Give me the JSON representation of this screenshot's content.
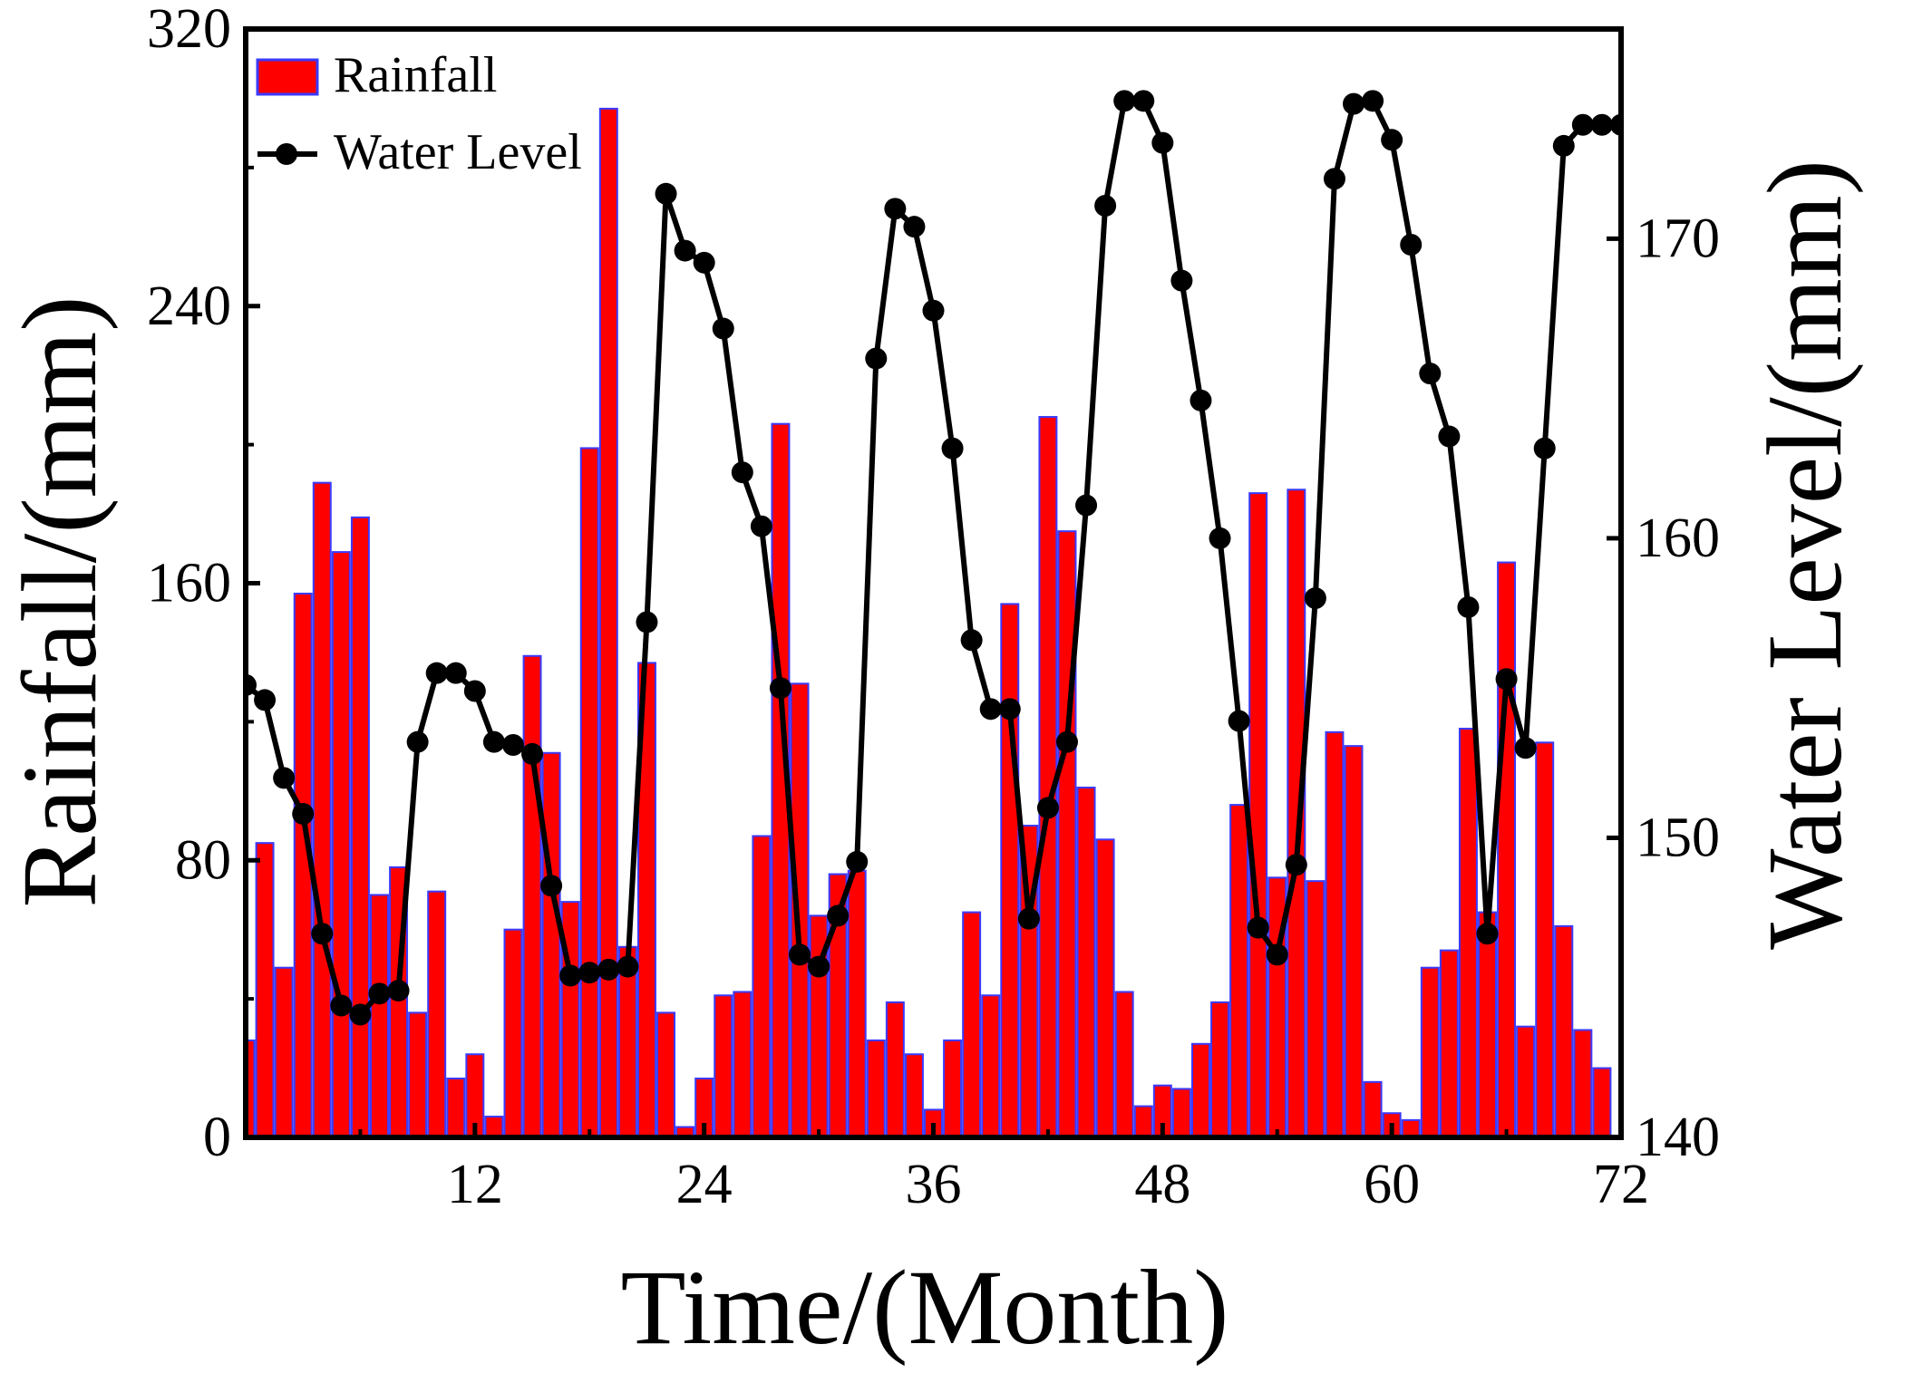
{
  "chart_data": {
    "type": "bar+line",
    "title": "",
    "xlabel": "Time/(Month)",
    "ylabel_left": "Rainfall/(mm)",
    "ylabel_right": "Water Level/(mm)",
    "xlim": [
      0,
      72
    ],
    "ylim_left": [
      0,
      320
    ],
    "ylim_right": [
      140,
      177
    ],
    "x_ticks": [
      "12",
      "24",
      "36",
      "48",
      "60",
      "72"
    ],
    "x_tick_values": [
      12,
      24,
      36,
      48,
      60,
      72
    ],
    "y_left_ticks": [
      "0",
      "80",
      "160",
      "240",
      "320"
    ],
    "y_left_tick_values": [
      0,
      80,
      160,
      240,
      320
    ],
    "y_right_ticks": [
      "140",
      "150",
      "160",
      "170"
    ],
    "y_right_tick_values": [
      140,
      150,
      160,
      170
    ],
    "legend": {
      "position": "top-left",
      "entries": [
        "Rainfall",
        "Water Level"
      ]
    },
    "colors": {
      "bar_fill": "#ff0000",
      "bar_edge": "#3a3aff",
      "line": "#000000"
    },
    "series": [
      {
        "name": "Rainfall",
        "kind": "bar",
        "axis": "left",
        "x": [
          0,
          1,
          2,
          3,
          4,
          5,
          6,
          7,
          8,
          9,
          10,
          11,
          12,
          13,
          14,
          15,
          16,
          17,
          18,
          19,
          20,
          21,
          22,
          23,
          24,
          25,
          26,
          27,
          28,
          29,
          30,
          31,
          32,
          33,
          34,
          35,
          36,
          37,
          38,
          39,
          40,
          41,
          42,
          43,
          44,
          45,
          46,
          47,
          48,
          49,
          50,
          51,
          52,
          53,
          54,
          55,
          56,
          57,
          58,
          59,
          60,
          61,
          62,
          63,
          64,
          65,
          66,
          67,
          68,
          69,
          70,
          71,
          72
        ],
        "values": [
          28,
          85,
          49,
          157,
          189,
          169,
          179,
          70,
          78,
          36,
          71,
          17,
          24,
          6,
          60,
          139,
          111,
          68,
          199,
          297,
          55,
          137,
          36,
          3,
          17,
          41,
          42,
          87,
          206,
          131,
          64,
          76,
          77,
          28,
          39,
          24,
          8,
          28,
          65,
          41,
          154,
          90,
          208,
          175,
          101,
          86,
          42,
          9,
          15,
          14,
          27,
          39,
          96,
          186,
          75,
          187,
          74,
          117,
          113,
          16,
          7,
          5,
          49,
          54,
          118,
          65,
          166,
          32,
          114,
          61,
          31,
          20,
          0
        ]
      },
      {
        "name": "Water Level",
        "kind": "line",
        "axis": "right",
        "x": [
          0,
          1,
          2,
          3,
          4,
          5,
          6,
          7,
          8,
          9,
          10,
          11,
          12,
          13,
          14,
          15,
          16,
          17,
          18,
          19,
          20,
          21,
          22,
          23,
          24,
          25,
          26,
          27,
          28,
          29,
          30,
          31,
          32,
          33,
          34,
          35,
          36,
          37,
          38,
          39,
          40,
          41,
          42,
          43,
          44,
          45,
          46,
          47,
          48,
          49,
          50,
          51,
          52,
          53,
          54,
          55,
          56,
          57,
          58,
          59,
          60,
          61,
          62,
          63,
          64,
          65,
          66,
          67,
          68,
          69,
          70,
          71,
          72
        ],
        "values": [
          155.1,
          154.6,
          152.0,
          150.8,
          146.8,
          144.4,
          144.1,
          144.8,
          144.9,
          153.2,
          155.5,
          155.5,
          154.9,
          153.2,
          153.1,
          152.8,
          148.4,
          145.4,
          145.5,
          145.6,
          145.7,
          157.2,
          171.5,
          169.6,
          169.2,
          167.0,
          162.2,
          160.4,
          155.0,
          146.1,
          145.7,
          147.4,
          149.2,
          166.0,
          171.0,
          170.4,
          167.6,
          163.0,
          156.6,
          154.3,
          154.3,
          147.3,
          151.0,
          153.2,
          161.1,
          171.1,
          174.6,
          174.6,
          173.2,
          168.6,
          164.6,
          160.0,
          153.9,
          147.0,
          146.1,
          149.1,
          158.0,
          172.0,
          174.5,
          174.6,
          173.3,
          169.8,
          165.5,
          163.4,
          157.7,
          146.8,
          155.3,
          153.0,
          163.0,
          173.1,
          173.8,
          173.8,
          173.8
        ]
      }
    ]
  }
}
